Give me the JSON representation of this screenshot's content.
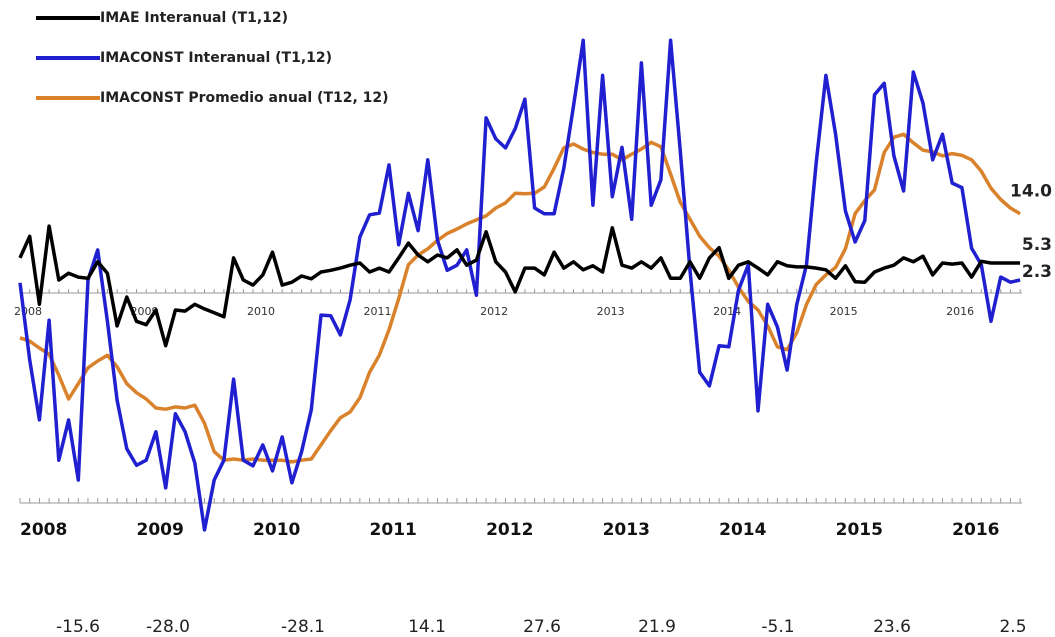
{
  "chart_data": {
    "type": "line",
    "categories": [
      "2008",
      null,
      null,
      null,
      null,
      null,
      null,
      null,
      null,
      null,
      null,
      null,
      "2009",
      null,
      null,
      null,
      null,
      null,
      null,
      null,
      null,
      null,
      null,
      null,
      "2010",
      null,
      null,
      null,
      null,
      null,
      null,
      null,
      null,
      null,
      null,
      null,
      "2011",
      null,
      null,
      null,
      null,
      null,
      null,
      null,
      null,
      null,
      null,
      null,
      "2012",
      null,
      null,
      null,
      null,
      null,
      null,
      null,
      null,
      null,
      null,
      null,
      "2013",
      null,
      null,
      null,
      null,
      null,
      null,
      null,
      null,
      null,
      null,
      null,
      "2014",
      null,
      null,
      null,
      null,
      null,
      null,
      null,
      null,
      null,
      null,
      null,
      "2015",
      null,
      null,
      null,
      null,
      null,
      null,
      null,
      null,
      null,
      null,
      null,
      "2016",
      null,
      null,
      null,
      null,
      null,
      null,
      null
    ],
    "series": [
      {
        "name": "IMAE Interanual (T1,12)",
        "color": "#000000",
        "end_label": "5.3",
        "values": [
          6.2,
          10,
          -2,
          11.8,
          2.3,
          3.5,
          2.8,
          2.6,
          5.5,
          3.5,
          -5.8,
          -0.7,
          -5,
          -5.6,
          -3,
          -9.3,
          -3,
          -3.2,
          -2,
          -2.8,
          -3.5,
          -4.2,
          6.2,
          2.3,
          1.4,
          3.2,
          7.2,
          1.4,
          1.9,
          3,
          2.5,
          3.7,
          4,
          4.4,
          4.9,
          5.3,
          3.7,
          4.4,
          3.7,
          6.2,
          8.8,
          6.7,
          5.5,
          6.7,
          6.2,
          7.6,
          4.9,
          5.8,
          10.8,
          5.5,
          3.7,
          0.2,
          4.4,
          4.4,
          3.2,
          7.2,
          4.4,
          5.5,
          4.1,
          4.8,
          3.7,
          11.5,
          4.9,
          4.4,
          5.5,
          4.4,
          6.2,
          2.6,
          2.6,
          5.5,
          2.6,
          6.2,
          8,
          2.6,
          4.9,
          5.5,
          4.4,
          3.2,
          5.5,
          4.8,
          4.6,
          4.6,
          4.4,
          4.1,
          2.6,
          4.8,
          2,
          1.9,
          3.7,
          4.4,
          4.9,
          6.2,
          5.5,
          6.5,
          3.2,
          5.3,
          5.1,
          5.3,
          2.8,
          5.6,
          5.3,
          5.3,
          5.3,
          5.3
        ]
      },
      {
        "name": "IMACONST Interanual (T1,12)",
        "color": "#2020d0",
        "end_label": "2.3",
        "values": [
          1.8,
          -11.8,
          -22.4,
          -4.8,
          -29.5,
          -22.4,
          -33,
          2.3,
          7.6,
          -5,
          -18.9,
          -27.5,
          -30.4,
          -29.5,
          -24.5,
          -34.4,
          -21.3,
          -24.5,
          -30,
          -41.8,
          -33,
          -29.5,
          -15.2,
          -29.5,
          -30.5,
          -26.8,
          -31.4,
          -25.4,
          -33.5,
          -28,
          -20.6,
          -3.9,
          -4,
          -7.4,
          -1.2,
          9.9,
          13.8,
          14.1,
          22.6,
          8.5,
          17.6,
          11,
          23.5,
          9.3,
          4,
          4.9,
          7.6,
          -0.4,
          30.9,
          27.2,
          25.6,
          29,
          34.2,
          15,
          14,
          14,
          22,
          33,
          44.6,
          15.5,
          38.4,
          17,
          25.7,
          13,
          40.6,
          15.5,
          20,
          44.6,
          25,
          4,
          -14,
          -16.4,
          -9.3,
          -9.5,
          0.5,
          5,
          -20.8,
          -2,
          -6,
          -13.6,
          -2,
          5,
          23,
          38.4,
          28,
          14.5,
          9,
          12.8,
          35,
          37,
          24.2,
          18,
          39,
          33.5,
          23.5,
          28,
          19.4,
          18.6,
          7.9,
          5,
          -5,
          2.8,
          1.9,
          2.3
        ]
      },
      {
        "name": "IMACONST Promedio anual (T12, 12)",
        "color": "#d9822b",
        "end_label": "14.0",
        "values": [
          -7.9,
          -8.5,
          -9.7,
          -10.8,
          -14.5,
          -18.7,
          -16,
          -13.2,
          -12,
          -11,
          -13,
          -16,
          -17.6,
          -18.7,
          -20.3,
          -20.5,
          -20.1,
          -20.3,
          -19.8,
          -23,
          -28,
          -29.5,
          -29.3,
          -29.5,
          -29.3,
          -29.5,
          -29.5,
          -29.5,
          -29.8,
          -29.5,
          -29.3,
          -26.8,
          -24.3,
          -22,
          -21,
          -18.5,
          -14,
          -11,
          -6.5,
          -1,
          5,
          6.7,
          7.8,
          9.3,
          10.5,
          11.3,
          12.2,
          12.9,
          13.6,
          15,
          15.9,
          17.6,
          17.5,
          17.6,
          18.7,
          22,
          25.6,
          26.3,
          25.4,
          24.8,
          24.5,
          24.5,
          23.5,
          24.5,
          25.4,
          26.6,
          25.8,
          21,
          16,
          13,
          10,
          8,
          6.5,
          4,
          1,
          -1.5,
          -3,
          -5.8,
          -9.5,
          -10,
          -7,
          -2,
          1.5,
          3.2,
          4.5,
          7.8,
          14,
          16.3,
          18.2,
          24.8,
          27.5,
          28,
          26.5,
          25.2,
          24.9,
          24.2,
          24.6,
          24.3,
          23.5,
          21.5,
          18.5,
          16.5,
          15,
          14
        ]
      }
    ],
    "ylim": [
      -45,
      48
    ],
    "annotations": [
      "-15.6",
      "-28.0",
      "-28.1",
      "14.1",
      "27.6",
      "21.9",
      "-5.1",
      "23.6",
      "2.5"
    ]
  }
}
